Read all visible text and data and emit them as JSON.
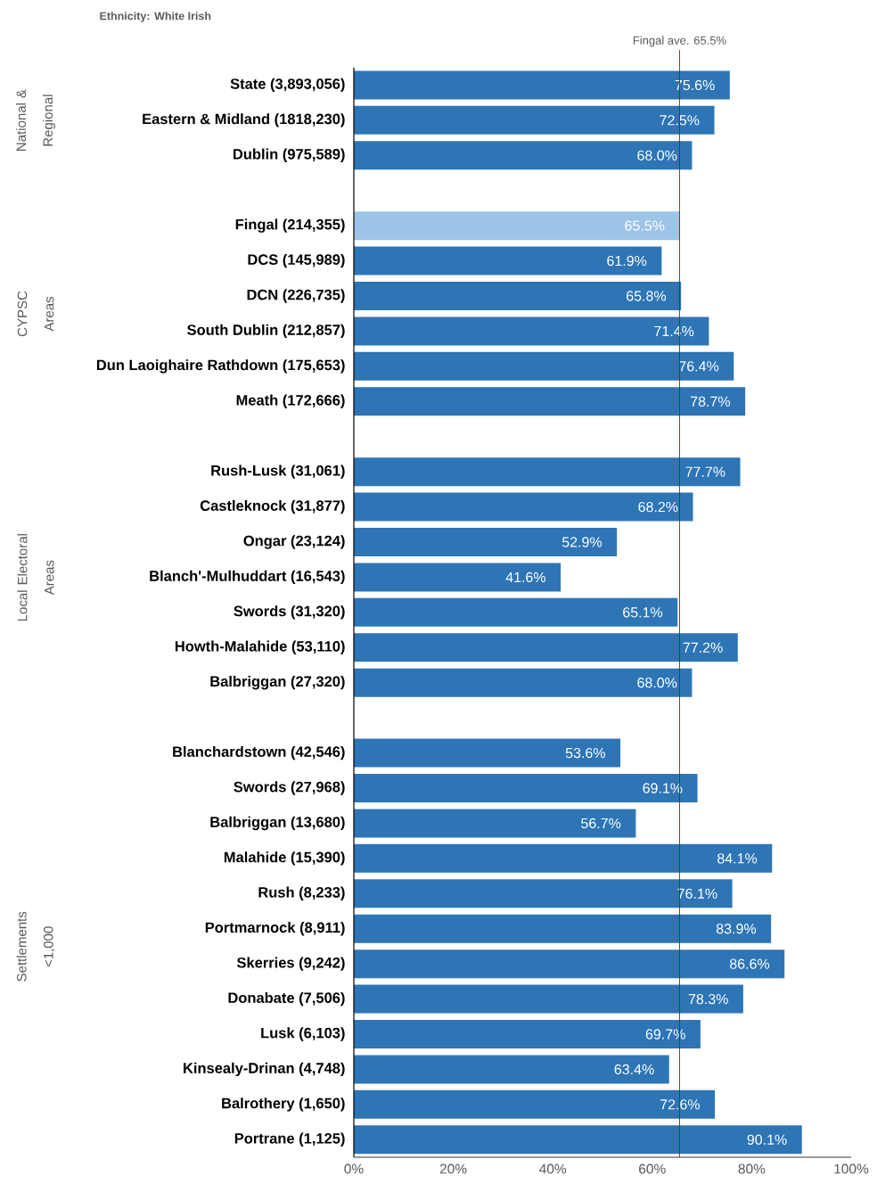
{
  "chart_data": {
    "type": "bar",
    "orientation": "horizontal",
    "title": "Ethnicity: White Irish",
    "categories": [
      "State (3,893,056)",
      "Eastern & Midland (1818,230)",
      "Dublin (975,589)",
      null,
      "Fingal (214,355)",
      "DCS (145,989)",
      "DCN (226,735)",
      "South Dublin (212,857)",
      "Dun Laoighaire Rathdown (175,653)",
      "Meath (172,666)",
      null,
      "Rush-Lusk (31,061)",
      "Castleknock (31,877)",
      "Ongar (23,124)",
      "Blanch'-Mulhuddart (16,543)",
      "Swords (31,320)",
      "Howth-Malahide (53,110)",
      "Balbriggan (27,320)",
      null,
      "Blanchardstown (42,546)",
      "Swords (27,968)",
      "Balbriggan (13,680)",
      "Malahide (15,390)",
      "Rush (8,233)",
      "Portmarnock (8,911)",
      "Skerries (9,242)",
      "Donabate (7,506)",
      "Lusk (6,103)",
      "Kinsealy-Drinan (4,748)",
      "Balrothery (1,650)",
      "Portrane (1,125)"
    ],
    "values": [
      75.6,
      72.5,
      68.0,
      null,
      65.5,
      61.9,
      65.8,
      71.4,
      76.4,
      78.7,
      null,
      77.7,
      68.2,
      52.9,
      41.6,
      65.1,
      77.2,
      68.0,
      null,
      53.6,
      69.1,
      56.7,
      84.1,
      76.1,
      83.9,
      86.6,
      78.3,
      69.7,
      63.4,
      72.6,
      90.1
    ],
    "value_labels": [
      "75.6%",
      "72.5%",
      "68.0%",
      null,
      "65.5%",
      "61.9%",
      "65.8%",
      "71.4%",
      "76.4%",
      "78.7%",
      null,
      "77.7%",
      "68.2%",
      "52.9%",
      "41.6%",
      "65.1%",
      "77.2%",
      "68.0%",
      null,
      "53.6%",
      "69.1%",
      "56.7%",
      "84.1%",
      "76.1%",
      "83.9%",
      "86.6%",
      "78.3%",
      "69.7%",
      "63.4%",
      "72.6%",
      "90.1%"
    ],
    "colors": [
      "#2e75b6",
      "#2e75b6",
      "#2e75b6",
      null,
      "#9dc3e6",
      "#2e75b6",
      "#2e75b6",
      "#2e75b6",
      "#2e75b6",
      "#2e75b6",
      null,
      "#2e75b6",
      "#2e75b6",
      "#2e75b6",
      "#2e75b6",
      "#2e75b6",
      "#2e75b6",
      "#2e75b6",
      null,
      "#2e75b6",
      "#2e75b6",
      "#2e75b6",
      "#2e75b6",
      "#2e75b6",
      "#2e75b6",
      "#2e75b6",
      "#2e75b6",
      "#2e75b6",
      "#2e75b6",
      "#2e75b6",
      "#2e75b6"
    ],
    "xlim": [
      0,
      100
    ],
    "xticks": [
      {
        "value": 0,
        "label": "0%"
      },
      {
        "value": 20,
        "label": "20%"
      },
      {
        "value": 40,
        "label": "40%"
      },
      {
        "value": 60,
        "label": "60%"
      },
      {
        "value": 80,
        "label": "80%"
      },
      {
        "value": 100,
        "label": "100%"
      }
    ],
    "ref_lines": [
      {
        "axis": "x",
        "value": 65.5,
        "label": "Fingal ave. 65.5%",
        "color": "#c00000"
      }
    ],
    "annotations": [
      "National & Regional",
      "CYPSC Areas",
      "Local Electoral Areas",
      "Settlements <1,000"
    ]
  }
}
